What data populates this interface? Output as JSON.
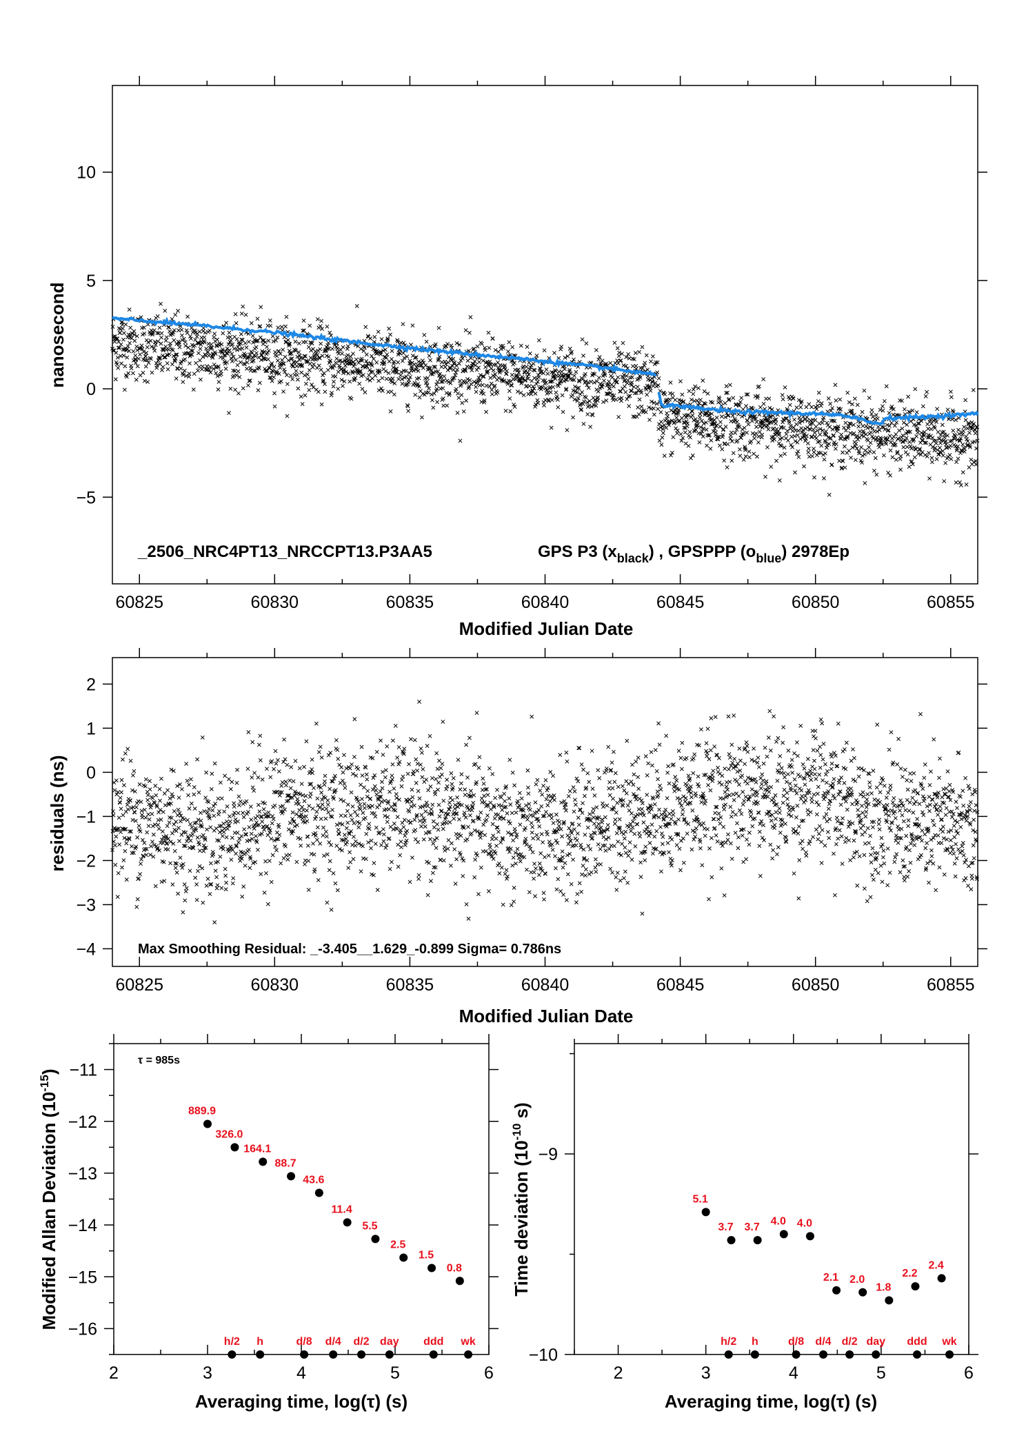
{
  "chart_data": [
    {
      "type": "scatter",
      "id": "timeseries",
      "xlabel": "Modified Julian Date",
      "ylabel": "nanosecond",
      "xlim": [
        60824,
        60856
      ],
      "ylim": [
        -9,
        14
      ],
      "xticks": [
        60825,
        60830,
        60835,
        60840,
        60845,
        60850,
        60855
      ],
      "yticks": [
        -5,
        0,
        5,
        10
      ],
      "annotation_id": "_2506_NRC4PT13_NRCCPT13.P3AA5",
      "annotation_desc": "GPS P3 (x",
      "annotation_sub1": "black",
      "annotation_mid": ") ,  GPSPPP (o",
      "annotation_sub2": "blue",
      "annotation_end": ")  2978Ep",
      "colors": {
        "black_series": "#000000",
        "blue_series": "#1e88e5"
      },
      "series": [
        {
          "name": "GPS P3",
          "marker": "x",
          "trend_points": [
            [
              60824,
              2.1
            ],
            [
              60844.1,
              0.1
            ],
            [
              60844.3,
              -1.3
            ],
            [
              60856,
              -2.4
            ]
          ],
          "scatter_sd": 0.8
        },
        {
          "name": "GPSPPP",
          "marker": "line",
          "points": [
            [
              60824,
              3.25
            ],
            [
              60827,
              2.95
            ],
            [
              60830,
              2.6
            ],
            [
              60833,
              2.15
            ],
            [
              60836,
              1.75
            ],
            [
              60839,
              1.4
            ],
            [
              60842,
              1.0
            ],
            [
              60844.1,
              0.65
            ],
            [
              60844.3,
              -0.75
            ],
            [
              60847,
              -1.05
            ],
            [
              60850,
              -1.15
            ],
            [
              60851.5,
              -1.3
            ],
            [
              60852,
              -1.55
            ],
            [
              60852.4,
              -1.6
            ],
            [
              60852.6,
              -1.35
            ],
            [
              60854,
              -1.3
            ],
            [
              60856,
              -1.15
            ]
          ]
        }
      ]
    },
    {
      "type": "scatter",
      "id": "residuals",
      "xlabel": "Modified Julian Date",
      "ylabel": "residuals (ns)",
      "xlim": [
        60824,
        60856
      ],
      "ylim": [
        -4.4,
        2.6
      ],
      "xticks": [
        60825,
        60830,
        60835,
        60840,
        60845,
        60850,
        60855
      ],
      "yticks": [
        -4,
        -3,
        -2,
        -1,
        0,
        1,
        2
      ],
      "annotation": "Max Smoothing Residual: _-3.405__1.629_-0.899  Sigma= 0.786ns",
      "mean_trend": [
        [
          60824,
          -1.0
        ],
        [
          60828,
          -1.4
        ],
        [
          60830,
          -0.9
        ],
        [
          60835,
          -0.8
        ],
        [
          60838,
          -1.2
        ],
        [
          60840,
          -1.5
        ],
        [
          60842,
          -1.1
        ],
        [
          60846,
          -0.6
        ],
        [
          60850,
          -0.5
        ],
        [
          60853,
          -1.1
        ],
        [
          60856,
          -1.3
        ]
      ],
      "scatter_sd": 0.75
    },
    {
      "type": "scatter",
      "id": "mdev",
      "xlabel": "Averaging time, log(τ) (s)",
      "ylabel_main": "Modified Allan Deviation (10",
      "ylabel_exp": "-15",
      "ylabel_end": ")",
      "xlim": [
        2,
        6
      ],
      "ylim": [
        -16.5,
        -10.5
      ],
      "xticks": [
        2,
        3,
        4,
        5,
        6
      ],
      "yticks": [
        -16,
        -15,
        -14,
        -13,
        -12,
        -11
      ],
      "tau_label": "τ = 985s",
      "points": [
        {
          "x": 3.0,
          "y": -12.05,
          "label": "889.9"
        },
        {
          "x": 3.29,
          "y": -12.5,
          "label": "326.0"
        },
        {
          "x": 3.59,
          "y": -12.78,
          "label": "164.1"
        },
        {
          "x": 3.89,
          "y": -13.06,
          "label": "88.7"
        },
        {
          "x": 4.19,
          "y": -13.38,
          "label": "43.6"
        },
        {
          "x": 4.49,
          "y": -13.95,
          "label": "11.4"
        },
        {
          "x": 4.79,
          "y": -14.27,
          "label": "5.5"
        },
        {
          "x": 5.09,
          "y": -14.63,
          "label": "2.5"
        },
        {
          "x": 5.39,
          "y": -14.83,
          "label": "1.5"
        },
        {
          "x": 5.69,
          "y": -15.08,
          "label": "0.8"
        }
      ],
      "markers": [
        {
          "x": 3.26,
          "label": "h/2"
        },
        {
          "x": 3.56,
          "label": "h"
        },
        {
          "x": 4.03,
          "label": "d/8"
        },
        {
          "x": 4.34,
          "label": "d/4"
        },
        {
          "x": 4.64,
          "label": "d/2"
        },
        {
          "x": 4.94,
          "label": "day"
        },
        {
          "x": 5.41,
          "label": "ddd"
        },
        {
          "x": 5.78,
          "label": "wk"
        }
      ],
      "marker_y": -16.5
    },
    {
      "type": "scatter",
      "id": "tdev",
      "xlabel": "Averaging time, log(τ) (s)",
      "ylabel_main": "Time deviation (10",
      "ylabel_exp": "-10",
      "ylabel_end": " s)",
      "xlim": [
        1.5,
        6
      ],
      "ylim": [
        -10,
        -8.45
      ],
      "xticks": [
        2,
        3,
        4,
        5,
        6
      ],
      "yticks": [
        -10,
        -9
      ],
      "points": [
        {
          "x": 3.0,
          "y": -9.29,
          "label": "5.1"
        },
        {
          "x": 3.29,
          "y": -9.43,
          "label": "3.7"
        },
        {
          "x": 3.59,
          "y": -9.43,
          "label": "3.7"
        },
        {
          "x": 3.89,
          "y": -9.4,
          "label": "4.0"
        },
        {
          "x": 4.19,
          "y": -9.41,
          "label": "4.0"
        },
        {
          "x": 4.49,
          "y": -9.68,
          "label": "2.1"
        },
        {
          "x": 4.79,
          "y": -9.69,
          "label": "2.0"
        },
        {
          "x": 5.09,
          "y": -9.73,
          "label": "1.8"
        },
        {
          "x": 5.39,
          "y": -9.66,
          "label": "2.2"
        },
        {
          "x": 5.69,
          "y": -9.62,
          "label": "2.4"
        }
      ],
      "markers": [
        {
          "x": 3.26,
          "label": "h/2"
        },
        {
          "x": 3.56,
          "label": "h"
        },
        {
          "x": 4.03,
          "label": "d/8"
        },
        {
          "x": 4.34,
          "label": "d/4"
        },
        {
          "x": 4.64,
          "label": "d/2"
        },
        {
          "x": 4.94,
          "label": "day"
        },
        {
          "x": 5.41,
          "label": "ddd"
        },
        {
          "x": 5.78,
          "label": "wk"
        }
      ],
      "marker_y": -10.0
    }
  ]
}
